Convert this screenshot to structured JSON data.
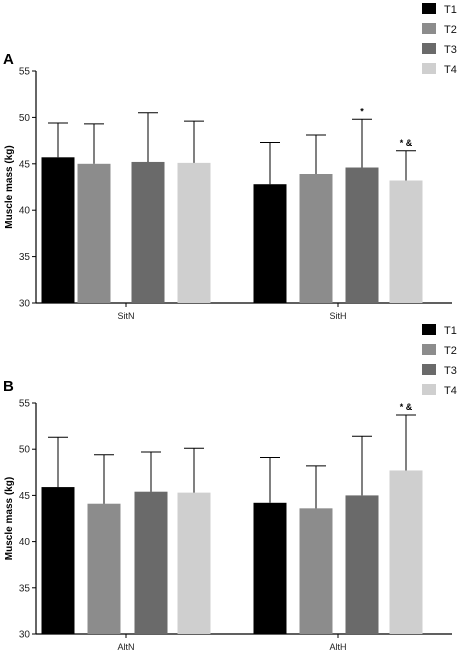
{
  "chart_data": [
    {
      "type": "bar",
      "panel_label": "A",
      "categories": [
        "SitN",
        "SitH"
      ],
      "series": [
        {
          "name": "T1",
          "color": "#000000",
          "values": [
            45.7,
            42.8
          ],
          "errors": [
            3.7,
            4.5
          ]
        },
        {
          "name": "T2",
          "color": "#8c8c8c",
          "values": [
            45.0,
            43.9
          ],
          "errors": [
            4.3,
            4.2
          ]
        },
        {
          "name": "T3",
          "color": "#6a6a6a",
          "values": [
            45.2,
            44.6
          ],
          "errors": [
            5.3,
            5.2
          ]
        },
        {
          "name": "T4",
          "color": "#cfcfcf",
          "values": [
            45.1,
            43.2
          ],
          "errors": [
            4.5,
            3.2
          ]
        }
      ],
      "ylabel": "Muscle mass (kg)",
      "xlabel": "",
      "ylim": [
        30,
        55
      ],
      "yticks": [
        30,
        35,
        40,
        45,
        50,
        55
      ],
      "annotations": [
        {
          "category": "SitH",
          "series": "T3",
          "text": "*"
        },
        {
          "category": "SitH",
          "series": "T4",
          "text": "* &"
        }
      ],
      "legend_position": "top-right",
      "grid": false
    },
    {
      "type": "bar",
      "panel_label": "B",
      "categories": [
        "AltN",
        "AltH"
      ],
      "series": [
        {
          "name": "T1",
          "color": "#000000",
          "values": [
            45.9,
            44.2
          ],
          "errors": [
            5.4,
            4.9
          ]
        },
        {
          "name": "T2",
          "color": "#8c8c8c",
          "values": [
            44.1,
            43.6
          ],
          "errors": [
            5.3,
            4.6
          ]
        },
        {
          "name": "T3",
          "color": "#6a6a6a",
          "values": [
            45.4,
            45.0
          ],
          "errors": [
            4.3,
            6.4
          ]
        },
        {
          "name": "T4",
          "color": "#cfcfcf",
          "values": [
            45.3,
            47.7
          ],
          "errors": [
            4.8,
            6.0
          ]
        }
      ],
      "ylabel": "Muscle mass (kg)",
      "xlabel": "",
      "ylim": [
        30,
        55
      ],
      "yticks": [
        30,
        35,
        40,
        45,
        50,
        55
      ],
      "annotations": [
        {
          "category": "AltH",
          "series": "T4",
          "text": "* &"
        }
      ],
      "legend_position": "top-right",
      "grid": false
    }
  ]
}
